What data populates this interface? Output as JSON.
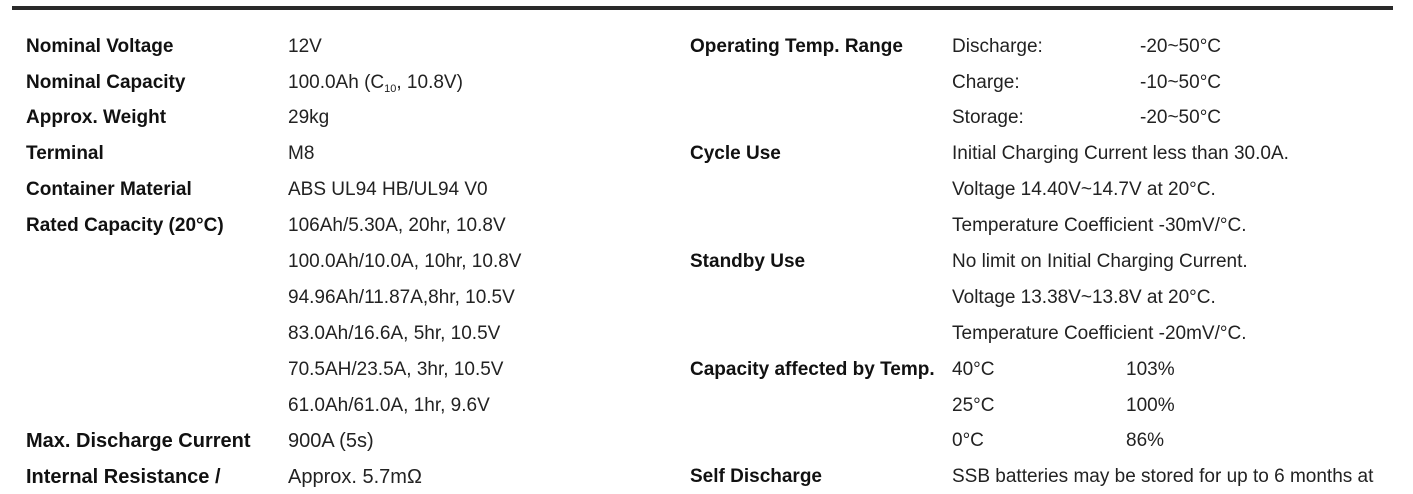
{
  "left": {
    "nominal_voltage": {
      "label": "Nominal Voltage",
      "value": "12V"
    },
    "nominal_capacity": {
      "label": "Nominal Capacity",
      "value_pre": "100.0Ah (C",
      "value_sub": "10",
      "value_post": ", 10.8V)"
    },
    "approx_weight": {
      "label": "Approx. Weight",
      "value": "29kg"
    },
    "terminal": {
      "label": "Terminal",
      "value": "M8"
    },
    "container_material": {
      "label": "Container Material",
      "value": "ABS UL94 HB/UL94 V0"
    },
    "rated_capacity": {
      "label": "Rated Capacity (20°C)",
      "values": [
        "106Ah/5.30A, 20hr, 10.8V",
        "100.0Ah/10.0A, 10hr, 10.8V",
        "94.96Ah/11.87A,8hr, 10.5V",
        "83.0Ah/16.6A, 5hr, 10.5V",
        "70.5AH/23.5A, 3hr, 10.5V",
        "61.0Ah/61.0A, 1hr, 9.6V"
      ]
    },
    "max_discharge": {
      "label": "Max. Discharge Current",
      "value": "900A (5s)"
    },
    "internal_resistance": {
      "label": "Internal Resistance /",
      "value": "Approx. 5.7mΩ"
    }
  },
  "right": {
    "operating_temp": {
      "label": "Operating Temp. Range",
      "rows": [
        {
          "name": "Discharge:",
          "value": "-20~50°C"
        },
        {
          "name": "Charge:",
          "value": "-10~50°C"
        },
        {
          "name": "Storage:",
          "value": "-20~50°C"
        }
      ]
    },
    "cycle_use": {
      "label": "Cycle Use",
      "lines": [
        "Initial Charging Current less than 30.0A.",
        "Voltage 14.40V~14.7V at 20°C.",
        "Temperature Coefficient -30mV/°C."
      ]
    },
    "standby_use": {
      "label": "Standby Use",
      "lines": [
        "No limit on Initial Charging Current.",
        "Voltage 13.38V~13.8V at 20°C.",
        "Temperature Coefficient -20mV/°C."
      ]
    },
    "capacity_temp": {
      "label": "Capacity affected by Temp.",
      "rows": [
        {
          "temp": "40°C",
          "pct": "103%"
        },
        {
          "temp": "25°C",
          "pct": "100%"
        },
        {
          "temp": "0°C",
          "pct": "86%"
        }
      ]
    },
    "self_discharge": {
      "label": "Self Discharge",
      "value": "SSB batteries may be stored for up to 6 months at"
    }
  }
}
